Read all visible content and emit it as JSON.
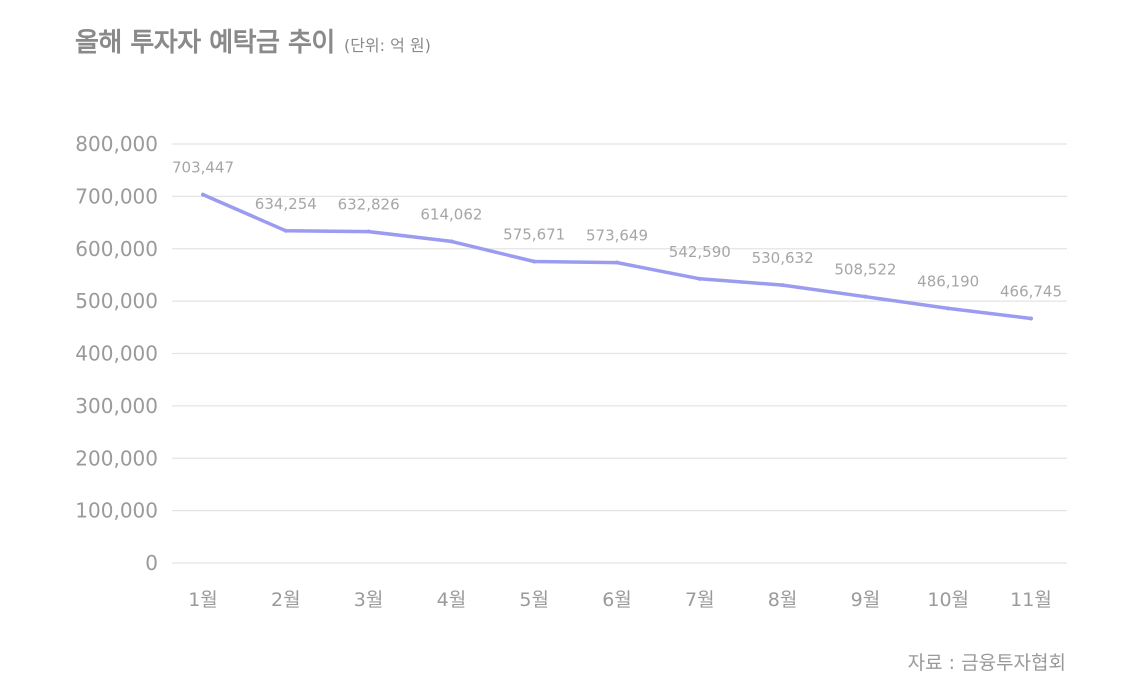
{
  "header": {
    "title": "올해 투자자 예탁금 추이",
    "unit": "(단위: 억 원)"
  },
  "footer": {
    "source": "자료 : 금융투자협회"
  },
  "colors": {
    "line": "#9b9bf0",
    "grid": "#e4e4e4",
    "text": "#9a9a9a"
  },
  "chart_data": {
    "type": "line",
    "title": "올해 투자자 예탁금 추이",
    "subtitle": "(단위: 억 원)",
    "xlabel": "",
    "ylabel": "",
    "categories": [
      "1월",
      "2월",
      "3월",
      "4월",
      "5월",
      "6월",
      "7월",
      "8월",
      "9월",
      "10월",
      "11월"
    ],
    "series": [
      {
        "name": "투자자 예탁금",
        "values": [
          703447,
          634254,
          632826,
          614062,
          575671,
          573649,
          542590,
          530632,
          508522,
          486190,
          466745
        ],
        "labels": [
          "703,447",
          "634,254",
          "632,826",
          "614,062",
          "575,671",
          "573,649",
          "542,590",
          "530,632",
          "508,522",
          "486,190",
          "466,745"
        ]
      }
    ],
    "ylim": [
      0,
      800000
    ],
    "yticks": [
      0,
      100000,
      200000,
      300000,
      400000,
      500000,
      600000,
      700000,
      800000
    ],
    "ytick_labels": [
      "0",
      "100,000",
      "200,000",
      "300,000",
      "400,000",
      "500,000",
      "600,000",
      "700,000",
      "800,000"
    ],
    "grid": true,
    "legend": "none",
    "source": "자료 : 금융투자협회"
  }
}
